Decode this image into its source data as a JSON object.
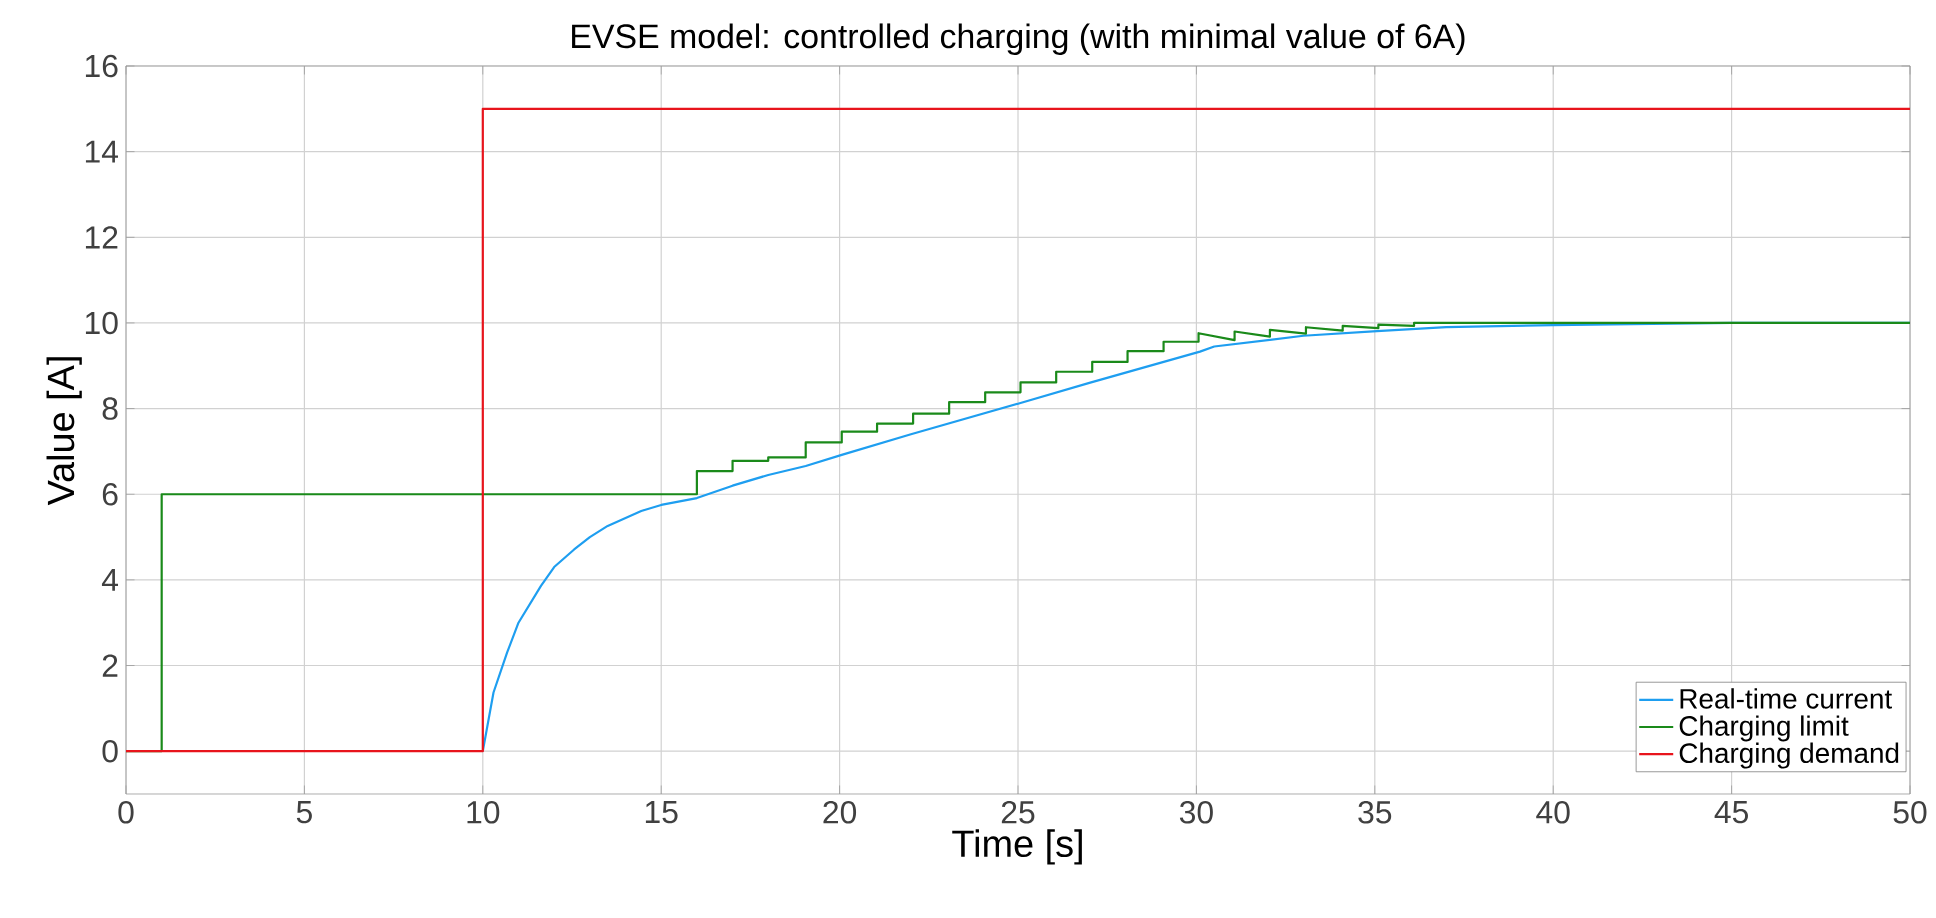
{
  "chart_data": {
    "type": "line",
    "title": "EVSE model: controlled charging (with minimal value of 6A)",
    "xlabel": "Time [s]",
    "ylabel": "Value [A]",
    "xlim": [
      0,
      50
    ],
    "ylim": [
      -1,
      16
    ],
    "xticks": [
      0,
      5,
      10,
      15,
      20,
      25,
      30,
      35,
      40,
      45,
      50
    ],
    "yticks": [
      0,
      2,
      4,
      6,
      8,
      10,
      12,
      14,
      16
    ],
    "grid": true,
    "legend": "bottom right",
    "marker": "none",
    "line_style": "solid",
    "series": [
      {
        "name": "Real-time current",
        "color": "#1e9ef0",
        "x": [
          10,
          10.3,
          10.68,
          11,
          11.63,
          12,
          12.56,
          13,
          13.5,
          14.44,
          15,
          16,
          17,
          18,
          19.05,
          20.06,
          22,
          25.07,
          27,
          30.1,
          30.5,
          33,
          35.06,
          37,
          40,
          45,
          50
        ],
        "values": [
          0,
          1.37,
          2.3,
          3.0,
          3.86,
          4.3,
          4.71,
          5.0,
          5.26,
          5.61,
          5.75,
          5.91,
          6.2,
          6.45,
          6.66,
          6.92,
          7.4,
          8.13,
          8.6,
          9.33,
          9.45,
          9.7,
          9.81,
          9.9,
          9.95,
          10,
          10
        ]
      },
      {
        "name": "Charging limit",
        "color": "#1a8a1a",
        "x": [
          0,
          1,
          1,
          16,
          16,
          17,
          17,
          18,
          18,
          19.05,
          19.05,
          20.06,
          20.06,
          21.05,
          21.05,
          22.06,
          22.06,
          23.07,
          23.07,
          24.08,
          24.08,
          25.07,
          25.07,
          26.07,
          26.07,
          27.08,
          27.08,
          28.07,
          28.07,
          29.08,
          29.08,
          30.06,
          30.06,
          31.07,
          31.07,
          32.06,
          32.06,
          33.07,
          33.07,
          34.1,
          34.1,
          35.1,
          35.1,
          36.1,
          36.1,
          50
        ],
        "values": [
          0,
          0,
          6,
          6,
          6.54,
          6.54,
          6.78,
          6.78,
          6.86,
          6.86,
          7.21,
          7.21,
          7.46,
          7.46,
          7.65,
          7.65,
          7.88,
          7.88,
          8.15,
          8.15,
          8.38,
          8.38,
          8.61,
          8.61,
          8.86,
          8.86,
          9.09,
          9.09,
          9.34,
          9.34,
          9.56,
          9.56,
          9.76,
          9.6,
          9.8,
          9.68,
          9.84,
          9.75,
          9.9,
          9.82,
          9.93,
          9.88,
          9.96,
          9.93,
          10,
          10
        ]
      },
      {
        "name": "Charging demand",
        "color": "#e8141c",
        "x": [
          0,
          10,
          10,
          50
        ],
        "values": [
          0,
          0,
          15,
          15
        ]
      }
    ]
  }
}
